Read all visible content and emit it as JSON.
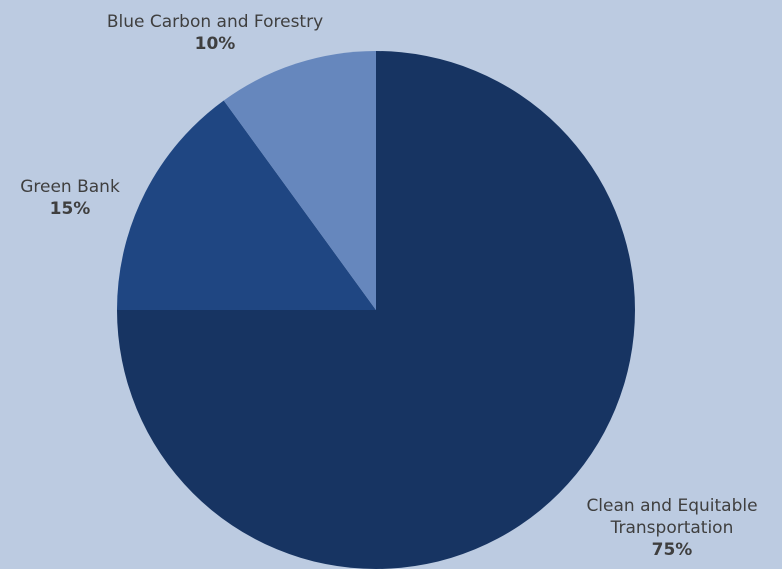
{
  "chart_data": {
    "type": "pie",
    "background_color": "#bccbe1",
    "start": "12 o'clock",
    "direction": "clockwise",
    "slices": [
      {
        "label_lines": [
          "Clean and Equitable",
          "Transportation"
        ],
        "value": 75,
        "value_label": "75%",
        "color": "#173462"
      },
      {
        "label_lines": [
          "Green Bank"
        ],
        "value": 15,
        "value_label": "15%",
        "color": "#1f4682"
      },
      {
        "label_lines": [
          "Blue Carbon and Forestry"
        ],
        "value": 10,
        "value_label": "10%",
        "color": "#6687bd"
      }
    ]
  }
}
